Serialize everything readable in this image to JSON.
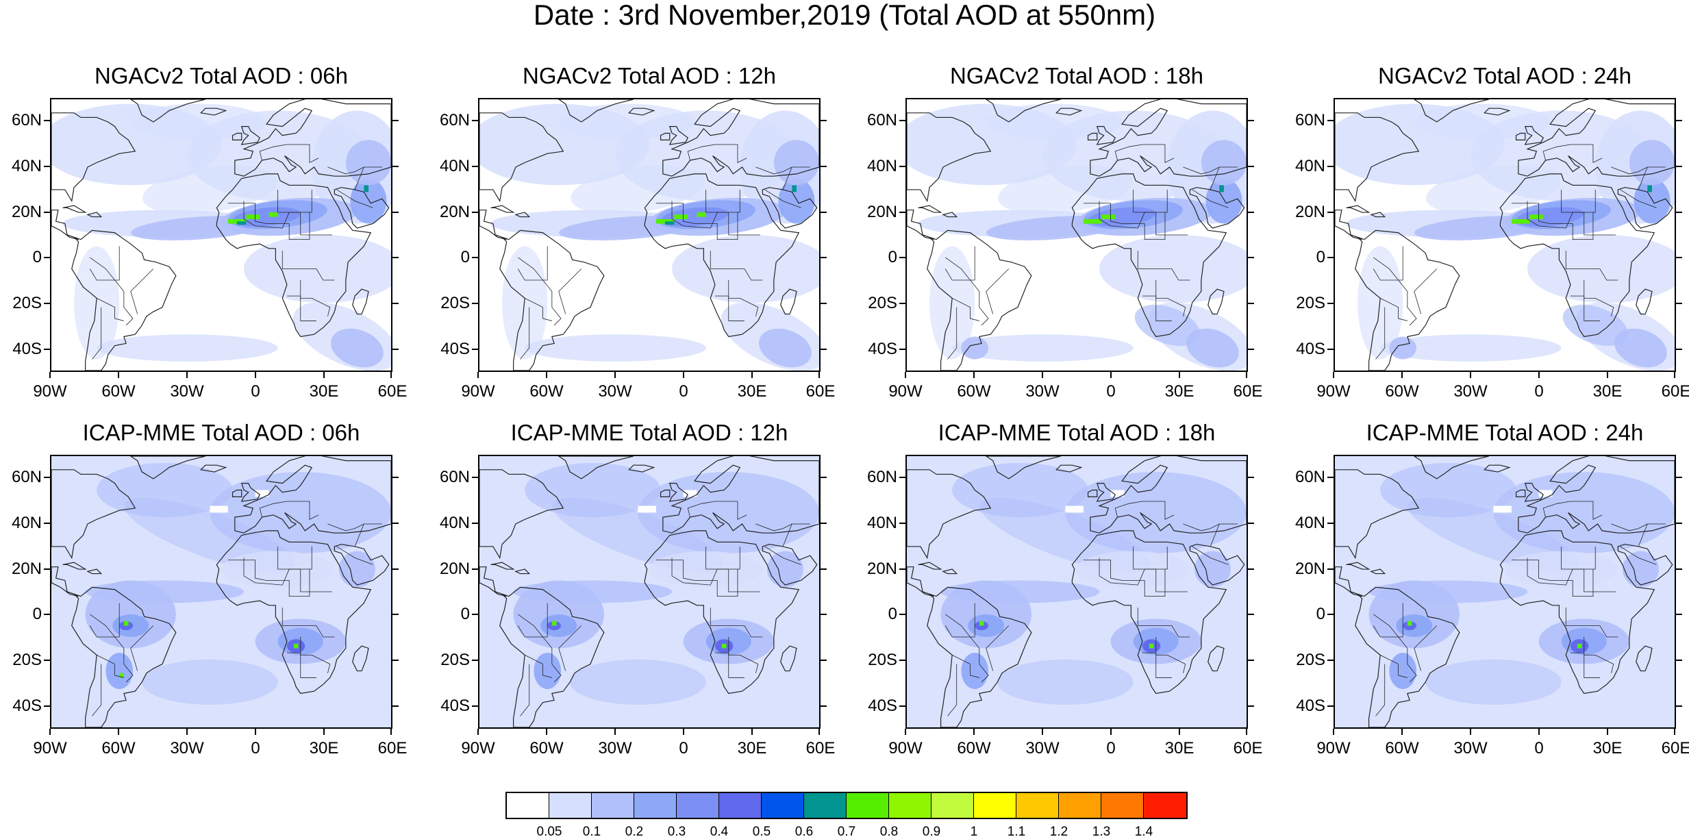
{
  "title": "Date : 3rd November,2019 (Total AOD at 550nm)",
  "lat_labels": [
    "60N",
    "40N",
    "20N",
    "0",
    "20S",
    "40S"
  ],
  "lon_labels": [
    "90W",
    "60W",
    "30W",
    "0",
    "30E",
    "60E"
  ],
  "panels": [
    {
      "title": "NGACv2 Total AOD : 06h",
      "model": "NGACv2",
      "hour": "06h"
    },
    {
      "title": "NGACv2 Total AOD : 12h",
      "model": "NGACv2",
      "hour": "12h"
    },
    {
      "title": "NGACv2 Total AOD : 18h",
      "model": "NGACv2",
      "hour": "18h"
    },
    {
      "title": "NGACv2 Total AOD : 24h",
      "model": "NGACv2",
      "hour": "24h"
    },
    {
      "title": "ICAP-MME Total AOD : 06h",
      "model": "ICAP-MME",
      "hour": "06h"
    },
    {
      "title": "ICAP-MME Total AOD : 12h",
      "model": "ICAP-MME",
      "hour": "12h"
    },
    {
      "title": "ICAP-MME Total AOD : 18h",
      "model": "ICAP-MME",
      "hour": "18h"
    },
    {
      "title": "ICAP-MME Total AOD : 24h",
      "model": "ICAP-MME",
      "hour": "24h"
    }
  ],
  "colorbar": {
    "labels": [
      "0.05",
      "0.1",
      "0.2",
      "0.3",
      "0.4",
      "0.5",
      "0.6",
      "0.7",
      "0.8",
      "0.9",
      "1",
      "1.1",
      "1.2",
      "1.3",
      "1.4"
    ],
    "colors": [
      "#ffffff",
      "#d6dffd",
      "#b1c0fb",
      "#8ea8f8",
      "#7b8ff5",
      "#6169ee",
      "#0055ec",
      "#00958f",
      "#55ee00",
      "#8ff500",
      "#c1fb3b",
      "#ffff00",
      "#ffc800",
      "#ffa000",
      "#ff7800",
      "#ff1e00"
    ]
  },
  "palette": {
    "background": "#ffffff",
    "light": "#d6dffd",
    "mid": "#b1c0fb",
    "dark": "#8ea8f8",
    "darker": "#7b8ff5",
    "coast": "#222222"
  }
}
